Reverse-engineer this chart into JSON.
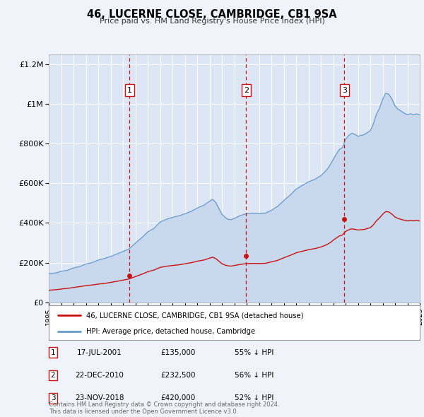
{
  "title": "46, LUCERNE CLOSE, CAMBRIDGE, CB1 9SA",
  "subtitle": "Price paid vs. HM Land Registry's House Price Index (HPI)",
  "background_color": "#f0f4fa",
  "plot_bg_color": "#dce6f5",
  "grid_color": "#ffffff",
  "hpi_color": "#6699cc",
  "hpi_fill_color": "#c8d9ee",
  "sale_color": "#cc1111",
  "vline_color": "#cc1111",
  "ylim": [
    0,
    1250000
  ],
  "yticks": [
    0,
    200000,
    400000,
    600000,
    800000,
    1000000,
    1200000
  ],
  "ytick_labels": [
    "£0",
    "£200K",
    "£400K",
    "£600K",
    "£800K",
    "£1M",
    "£1.2M"
  ],
  "x_start_year": 1995,
  "x_end_year": 2025,
  "sales": [
    {
      "date": 2001.54,
      "price": 135000,
      "label": "1",
      "date_str": "17-JUL-2001",
      "price_str": "£135,000",
      "pct": "55%"
    },
    {
      "date": 2010.97,
      "price": 232500,
      "label": "2",
      "date_str": "22-DEC-2010",
      "price_str": "£232,500",
      "pct": "56%"
    },
    {
      "date": 2018.9,
      "price": 420000,
      "label": "3",
      "date_str": "23-NOV-2018",
      "price_str": "£420,000",
      "pct": "52%"
    }
  ],
  "legend_line1": "46, LUCERNE CLOSE, CAMBRIDGE, CB1 9SA (detached house)",
  "legend_line2": "HPI: Average price, detached house, Cambridge",
  "footer": "Contains HM Land Registry data © Crown copyright and database right 2024.\nThis data is licensed under the Open Government Licence v3.0.",
  "hpi_base_years": [
    1995.0,
    1995.5,
    1996.0,
    1996.5,
    1997.0,
    1997.5,
    1998.0,
    1998.5,
    1999.0,
    1999.5,
    2000.0,
    2000.5,
    2001.0,
    2001.5,
    2002.0,
    2002.5,
    2003.0,
    2003.5,
    2004.0,
    2004.5,
    2005.0,
    2005.5,
    2006.0,
    2006.5,
    2007.0,
    2007.5,
    2008.0,
    2008.25,
    2008.5,
    2008.75,
    2009.0,
    2009.25,
    2009.5,
    2009.75,
    2010.0,
    2010.5,
    2011.0,
    2011.5,
    2012.0,
    2012.5,
    2013.0,
    2013.5,
    2014.0,
    2014.5,
    2015.0,
    2015.5,
    2016.0,
    2016.5,
    2017.0,
    2017.25,
    2017.5,
    2017.75,
    2018.0,
    2018.25,
    2018.5,
    2018.75,
    2019.0,
    2019.25,
    2019.5,
    2019.75,
    2020.0,
    2020.5,
    2021.0,
    2021.25,
    2021.5,
    2021.75,
    2022.0,
    2022.25,
    2022.5,
    2022.75,
    2023.0,
    2023.25,
    2023.5,
    2023.75,
    2024.0,
    2024.25,
    2024.5,
    2024.75,
    2025.0
  ],
  "hpi_base_values": [
    145000,
    148000,
    158000,
    163000,
    175000,
    182000,
    195000,
    202000,
    215000,
    222000,
    232000,
    244000,
    257000,
    270000,
    300000,
    325000,
    355000,
    372000,
    405000,
    418000,
    428000,
    435000,
    445000,
    458000,
    475000,
    488000,
    510000,
    520000,
    505000,
    475000,
    445000,
    430000,
    420000,
    418000,
    425000,
    438000,
    448000,
    450000,
    448000,
    450000,
    465000,
    485000,
    515000,
    540000,
    572000,
    590000,
    608000,
    620000,
    638000,
    652000,
    668000,
    690000,
    718000,
    745000,
    768000,
    778000,
    820000,
    838000,
    850000,
    845000,
    835000,
    842000,
    862000,
    895000,
    945000,
    975000,
    1020000,
    1050000,
    1045000,
    1020000,
    985000,
    968000,
    958000,
    948000,
    940000,
    945000,
    940000,
    945000,
    940000
  ],
  "sale_base_years": [
    1995.0,
    1995.5,
    1996.0,
    1996.5,
    1997.0,
    1997.5,
    1998.0,
    1998.5,
    1999.0,
    1999.5,
    2000.0,
    2000.5,
    2001.0,
    2001.5,
    2002.0,
    2002.5,
    2003.0,
    2003.5,
    2004.0,
    2004.5,
    2005.0,
    2005.5,
    2006.0,
    2006.5,
    2007.0,
    2007.5,
    2008.0,
    2008.25,
    2008.5,
    2008.75,
    2009.0,
    2009.25,
    2009.5,
    2009.75,
    2010.0,
    2010.5,
    2011.0,
    2011.5,
    2012.0,
    2012.5,
    2013.0,
    2013.5,
    2014.0,
    2014.5,
    2015.0,
    2015.5,
    2016.0,
    2016.5,
    2017.0,
    2017.25,
    2017.5,
    2017.75,
    2018.0,
    2018.25,
    2018.5,
    2018.75,
    2019.0,
    2019.25,
    2019.5,
    2019.75,
    2020.0,
    2020.5,
    2021.0,
    2021.25,
    2021.5,
    2021.75,
    2022.0,
    2022.25,
    2022.5,
    2022.75,
    2023.0,
    2023.25,
    2023.5,
    2023.75,
    2024.0,
    2024.25,
    2024.5,
    2024.75,
    2025.0
  ],
  "sale_base_values": [
    62000,
    64000,
    68000,
    71000,
    76000,
    80000,
    85000,
    88000,
    93000,
    96000,
    101000,
    106000,
    112000,
    118000,
    130000,
    141000,
    154000,
    162000,
    176000,
    182000,
    186000,
    189000,
    194000,
    199000,
    207000,
    212000,
    222000,
    227000,
    220000,
    207000,
    194000,
    187000,
    183000,
    182000,
    185000,
    191000,
    195000,
    196000,
    195000,
    196000,
    203000,
    211000,
    224000,
    235000,
    249000,
    257000,
    265000,
    270000,
    278000,
    284000,
    291000,
    300000,
    313000,
    324000,
    334000,
    339000,
    357000,
    365000,
    370000,
    368000,
    364000,
    367000,
    376000,
    390000,
    411000,
    425000,
    444000,
    457000,
    455000,
    444000,
    429000,
    422000,
    417000,
    413000,
    410000,
    412000,
    410000,
    412000,
    410000
  ]
}
